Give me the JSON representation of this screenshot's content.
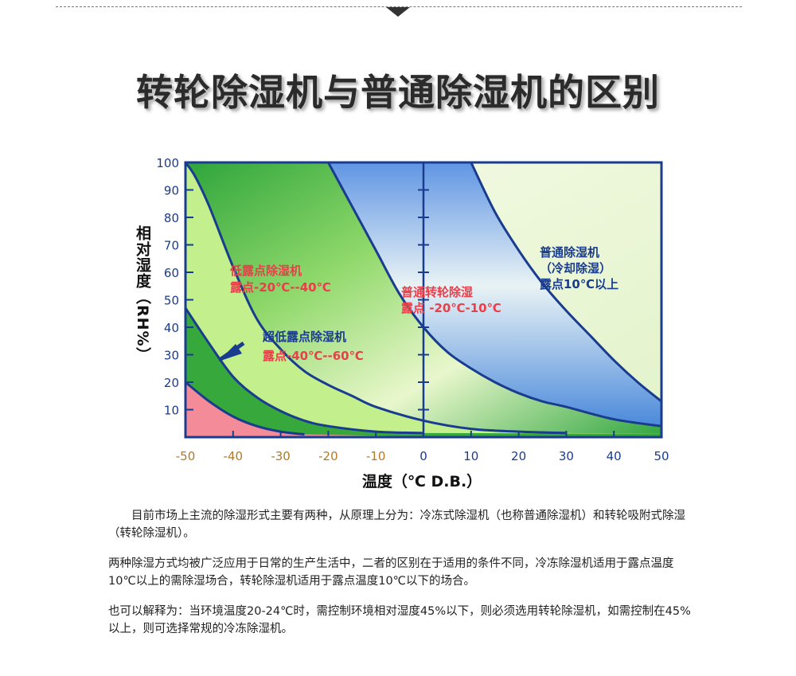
{
  "title": "转轮除湿机与普通除湿机的区别",
  "chart_data": {
    "type": "area",
    "xlabel": "温度（℃ D.B.）",
    "ylabel": "相对湿度（RH%）",
    "xlim": [
      -50,
      50
    ],
    "ylim": [
      0,
      100
    ],
    "x_ticks": [
      "-50",
      "-40",
      "-30",
      "-20",
      "-10",
      "0",
      "10",
      "20",
      "30",
      "40",
      "50"
    ],
    "y_ticks": [
      "10",
      "20",
      "30",
      "40",
      "50",
      "60",
      "70",
      "80",
      "90",
      "100"
    ],
    "grid": false,
    "regions": [
      {
        "name": "低露点除湿机",
        "note": "露点-20℃--40℃",
        "color": "#1e9e3a"
      },
      {
        "name": "超低露点除湿机",
        "note": "露点-40℃--60℃",
        "color": "#b8ea7d"
      },
      {
        "name": "普通转轮除湿",
        "note": "露点 -20℃-10℃",
        "color": "#5d8fe0"
      },
      {
        "name": "普通除湿机",
        "note": "（冷却除湿）",
        "note2": "露点10℃以上",
        "color": "#e8f7d2"
      }
    ],
    "curves": [
      {
        "dew_point": -60,
        "points": [
          [
            -50,
            20
          ],
          [
            -45,
            13
          ],
          [
            -40,
            7.5
          ],
          [
            -35,
            4
          ],
          [
            -30,
            2
          ],
          [
            -25,
            1
          ]
        ]
      },
      {
        "dew_point": -40,
        "points": [
          [
            -50,
            47
          ],
          [
            -45,
            34
          ],
          [
            -40,
            22
          ],
          [
            -35,
            14.5
          ],
          [
            -30,
            9.5
          ],
          [
            -25,
            6
          ],
          [
            -20,
            4
          ],
          [
            -10,
            2
          ],
          [
            0,
            1.5
          ]
        ]
      },
      {
        "dew_point": -20,
        "points": [
          [
            -50,
            100
          ],
          [
            -48,
            95
          ],
          [
            -45,
            84
          ],
          [
            -40,
            62
          ],
          [
            -35,
            43
          ],
          [
            -30,
            32
          ],
          [
            -25,
            24
          ],
          [
            -20,
            19
          ],
          [
            -15,
            15
          ],
          [
            -10,
            11
          ],
          [
            0,
            6
          ],
          [
            10,
            3
          ],
          [
            20,
            2
          ],
          [
            30,
            1.5
          ]
        ]
      },
      {
        "dew_point": 0,
        "points": [
          [
            -20,
            100
          ],
          [
            -15,
            84
          ],
          [
            -10,
            68
          ],
          [
            -5,
            52
          ],
          [
            0,
            40
          ],
          [
            5,
            31
          ],
          [
            10,
            25
          ],
          [
            15,
            20
          ],
          [
            20,
            16
          ],
          [
            25,
            13
          ],
          [
            30,
            11
          ],
          [
            40,
            6.5
          ],
          [
            50,
            4
          ]
        ]
      },
      {
        "dew_point": 10,
        "points": [
          [
            10,
            100
          ],
          [
            15,
            82
          ],
          [
            20,
            68
          ],
          [
            25,
            56
          ],
          [
            30,
            46
          ],
          [
            35,
            37
          ],
          [
            40,
            28
          ],
          [
            45,
            20
          ],
          [
            50,
            13
          ]
        ]
      }
    ]
  },
  "paragraphs": [
    "目前市场上主流的除湿形式主要有两种，从原理上分为：冷冻式除湿机（也称普通除湿机）和转轮吸附式除湿（转轮除湿机）。",
    "两种除湿方式均被广泛应用于日常的生产生活中，二者的区别在于适用的条件不同，冷冻除湿机适用于露点温度10℃以上的需除湿场合，转轮除湿机适用于露点温度10℃以下的场合。",
    "也可以解释为：当环境温度20-24℃时，需控制环境相对湿度45%以下，则必须选用转轮除湿机，如需控制在45%以上，则可选择常规的冷冻除湿机。"
  ]
}
